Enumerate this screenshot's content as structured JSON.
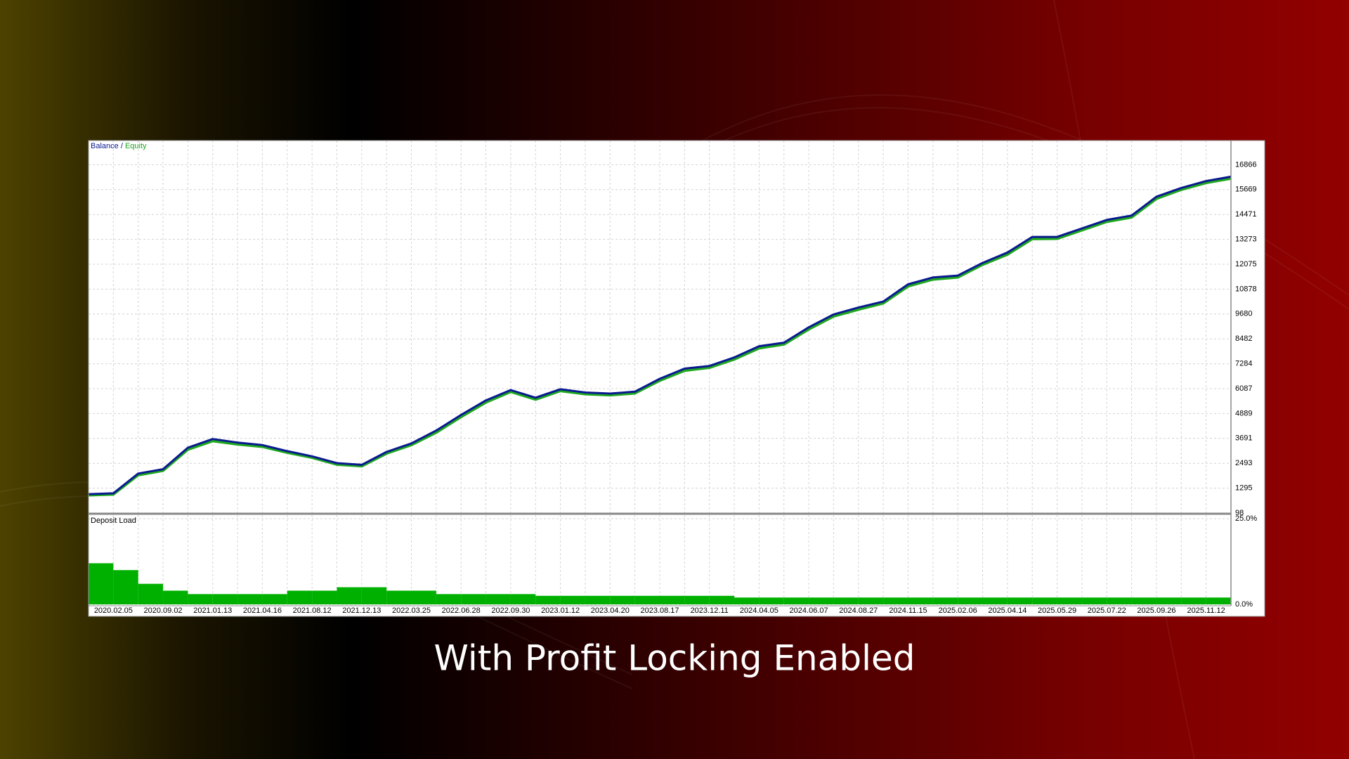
{
  "caption": "With Profit Locking Enabled",
  "chart_data": [
    {
      "type": "line",
      "legend_separator": "/",
      "categories": [
        null,
        "2020.02.05",
        null,
        "2020.09.02",
        null,
        "2021.01.13",
        null,
        "2021.04.16",
        null,
        "2021.08.12",
        null,
        "2021.12.13",
        null,
        "2022.03.25",
        null,
        "2022.06.28",
        null,
        "2022.09.30",
        null,
        "2023.01.12",
        null,
        "2023.04.20",
        null,
        "2023.08.17",
        null,
        "2023.12.11",
        null,
        "2024.04.05",
        null,
        "2024.06.07",
        null,
        "2024.08.27",
        null,
        "2024.11.15",
        null,
        "2025.02.06",
        null,
        "2025.04.14",
        null,
        "2025.05.29",
        null,
        "2025.07.22",
        null,
        "2025.09.26",
        null,
        "2025.11.12",
        null
      ],
      "series": [
        {
          "name": "Balance",
          "color": "#0a1a8f",
          "values": [
            1009,
            1050,
            2000,
            2210,
            3245,
            3660,
            3490,
            3370,
            3080,
            2830,
            2500,
            2420,
            3040,
            3450,
            4070,
            4820,
            5520,
            6020,
            5650,
            6060,
            5900,
            5850,
            5940,
            6560,
            7050,
            7180,
            7590,
            8130,
            8300,
            9040,
            9660,
            9990,
            10280,
            11110,
            11440,
            11530,
            12140,
            12640,
            13390,
            13390,
            13800,
            14210,
            14420,
            15330,
            15750,
            16080,
            16290
          ]
        },
        {
          "name": "Equity",
          "color": "#1fa81f",
          "values": [
            950,
            990,
            1920,
            2130,
            3150,
            3560,
            3400,
            3290,
            3000,
            2760,
            2430,
            2350,
            2960,
            3370,
            3970,
            4720,
            5420,
            5930,
            5560,
            5970,
            5820,
            5770,
            5860,
            6470,
            6950,
            7090,
            7490,
            8030,
            8210,
            8940,
            9560,
            9890,
            10190,
            11010,
            11340,
            11440,
            12050,
            12540,
            13290,
            13300,
            13710,
            14120,
            14330,
            15230,
            15660,
            15990,
            16200
          ]
        }
      ],
      "ylim": [
        98,
        18030
      ],
      "yticks": [
        98,
        1295,
        2493,
        3691,
        4889,
        6087,
        7284,
        8482,
        9680,
        10878,
        12075,
        13273,
        14471,
        15669,
        16866
      ],
      "grid": true
    },
    {
      "type": "bar",
      "title": "Deposit Load",
      "color": "#00b000",
      "values": [
        12,
        10,
        6,
        4,
        3,
        3,
        3,
        3,
        4,
        4,
        5,
        5,
        4,
        4,
        3,
        3,
        3,
        3,
        2.5,
        2.5,
        2.5,
        2.5,
        2.5,
        2.5,
        2.5,
        2.5,
        2,
        2,
        2,
        2,
        2,
        2,
        2,
        2,
        2,
        2,
        2,
        2,
        2,
        2,
        2,
        2,
        2,
        2,
        2,
        2
      ],
      "ylim": [
        0,
        25
      ],
      "yticks": [
        {
          "value": 0,
          "label": "0.0%"
        },
        {
          "value": 25,
          "label": "25.0%"
        }
      ],
      "grid": true
    }
  ]
}
